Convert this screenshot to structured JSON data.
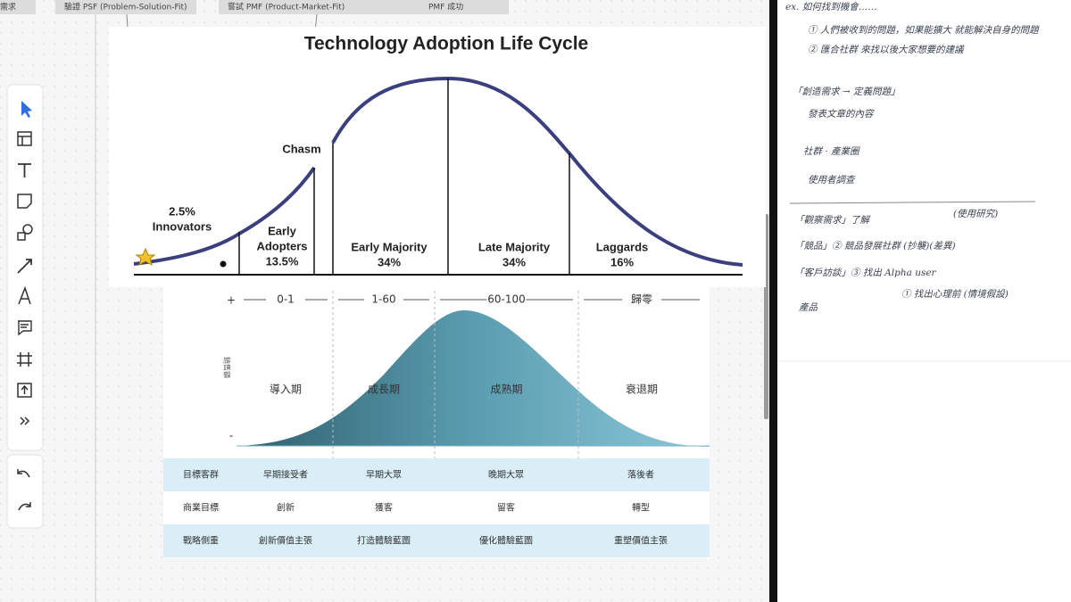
{
  "tabs": [
    "需求",
    "驗證 PSF (Problem-Solution-Fit)",
    "嘗試 PMF (Product-Market-Fit)",
    "PMF 成功"
  ],
  "adoption": {
    "title": "Technology Adoption Life Cycle",
    "chasm": "Chasm",
    "segments": [
      {
        "lines": [
          "2.5%",
          "Innovators"
        ]
      },
      {
        "lines": [
          "Early",
          "Adopters",
          "13.5%"
        ]
      },
      {
        "lines": [
          "Early Majority",
          "34%"
        ]
      },
      {
        "lines": [
          "Late Majority",
          "34%"
        ]
      },
      {
        "lines": [
          "Laggards",
          "16%"
        ]
      }
    ]
  },
  "lifecycle": {
    "plus": "+",
    "minus": "-",
    "axis_label": "銷售額",
    "phases": [
      "0-1",
      "1-60",
      "60-100",
      "歸零"
    ],
    "stages": [
      "導入期",
      "成長期",
      "成熟期",
      "衰退期"
    ],
    "table": {
      "rows": [
        [
          "目標客群",
          "早期接受者",
          "早期大眾",
          "晚期大眾",
          "落後者"
        ],
        [
          "商業目標",
          "創新",
          "獲客",
          "留客",
          "轉型"
        ],
        [
          "戰略側重",
          "創新價值主張",
          "打造體驗藍圖",
          "優化體驗藍圖",
          "重塑價值主張"
        ]
      ]
    }
  },
  "notes": [
    "ex. 如何找到機會……",
    "① 人們被收到的問題，如果能擴大 就能解決自身的問題",
    "② 匯合社群 來找以後大家想要的建議",
    "「創造需求 → 定義問題」",
    "發表文章的內容",
    "社群 · 產業圈",
    "使用者調查",
    "「觀察需求」了解",
    "(使用研究)",
    "「競品」② 競品發展社群 (抄襲)(差異)",
    "「客戶訪談」③ 找出 Alpha user",
    "① 找出心理前 (情境假設)",
    "產品"
  ]
}
